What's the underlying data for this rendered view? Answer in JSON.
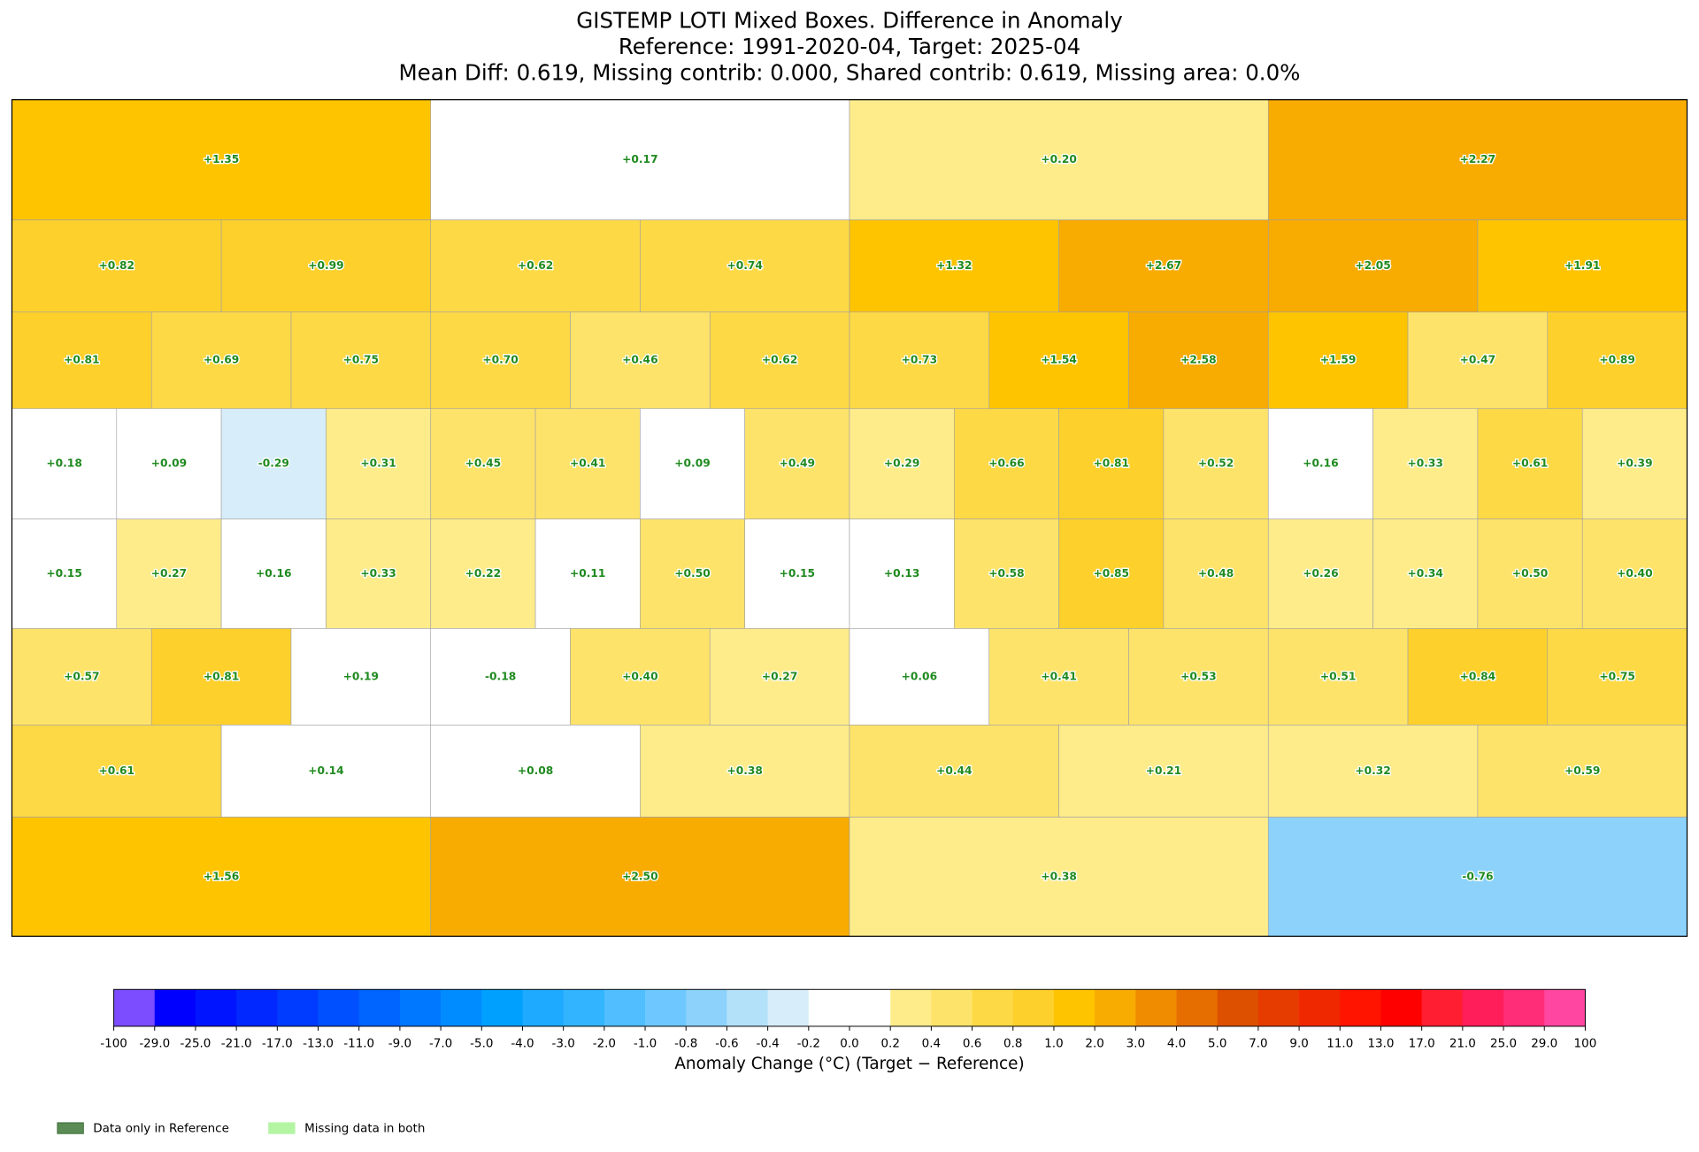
{
  "title_lines": [
    "GISTEMP LOTI Mixed Boxes. Difference in Anomaly",
    "Reference: 1991-2020-04, Target: 2025-04",
    "Mean Diff: 0.619, Missing contrib: 0.000, Shared contrib: 0.619, Missing area: 0.0%"
  ],
  "map": {
    "rows": [
      [
        "+1.35",
        "+0.17",
        "+0.20",
        "+2.27"
      ],
      [
        "+0.82",
        "+0.99",
        "+0.62",
        "+0.74",
        "+1.32",
        "+2.67",
        "+2.05",
        "+1.91"
      ],
      [
        "+0.81",
        "+0.69",
        "+0.75",
        "+0.70",
        "+0.46",
        "+0.62",
        "+0.73",
        "+1.54",
        "+2.58",
        "+1.59",
        "+0.47",
        "+0.89"
      ],
      [
        "+0.18",
        "+0.09",
        "-0.29",
        "+0.31",
        "+0.45",
        "+0.41",
        "+0.09",
        "+0.49",
        "+0.29",
        "+0.66",
        "+0.81",
        "+0.52",
        "+0.16",
        "+0.33",
        "+0.61",
        "+0.39"
      ],
      [
        "+0.15",
        "+0.27",
        "+0.16",
        "+0.33",
        "+0.22",
        "+0.11",
        "+0.50",
        "+0.15",
        "+0.13",
        "+0.58",
        "+0.85",
        "+0.48",
        "+0.26",
        "+0.34",
        "+0.50",
        "+0.40"
      ],
      [
        "+0.57",
        "+0.81",
        "+0.19",
        "-0.18",
        "+0.40",
        "+0.27",
        "+0.06",
        "+0.41",
        "+0.53",
        "+0.51",
        "+0.84",
        "+0.75"
      ],
      [
        "+0.61",
        "+0.14",
        "+0.08",
        "+0.38",
        "+0.44",
        "+0.21",
        "+0.32",
        "+0.59"
      ],
      [
        "+1.56",
        "+2.50",
        "+0.38",
        "-0.76"
      ]
    ]
  },
  "colorbar": {
    "label": "Anomaly Change (°C) (Target − Reference)",
    "levels": [
      -100,
      {
        "value": -29,
        "label": "-29.0"
      },
      {
        "value": -25,
        "label": "-25.0"
      },
      {
        "value": -21,
        "label": "-21.0"
      },
      {
        "value": -17,
        "label": "-17.0"
      },
      {
        "value": -13,
        "label": "-13.0"
      },
      {
        "value": -11,
        "label": "-11.0"
      },
      {
        "value": -9,
        "label": "-9.0"
      },
      {
        "value": -7,
        "label": "-7.0"
      },
      {
        "value": -5,
        "label": "-5.0"
      },
      {
        "value": -4,
        "label": "-4.0"
      },
      {
        "value": -3,
        "label": "-3.0"
      },
      {
        "value": -2,
        "label": "-2.0"
      },
      {
        "value": -1,
        "label": "-1.0"
      },
      -0.8,
      -0.6,
      -0.4,
      -0.2,
      {
        "value": 0,
        "label": "0.0"
      },
      0.2,
      0.4,
      0.6,
      0.8,
      {
        "value": 1,
        "label": "1.0"
      },
      {
        "value": 2,
        "label": "2.0"
      },
      {
        "value": 3,
        "label": "3.0"
      },
      {
        "value": 4,
        "label": "4.0"
      },
      {
        "value": 5,
        "label": "5.0"
      },
      {
        "value": 7,
        "label": "7.0"
      },
      {
        "value": 9,
        "label": "9.0"
      },
      {
        "value": 11,
        "label": "11.0"
      },
      {
        "value": 13,
        "label": "13.0"
      },
      {
        "value": 17,
        "label": "17.0"
      },
      {
        "value": 21,
        "label": "21.0"
      },
      {
        "value": 25,
        "label": "25.0"
      },
      {
        "value": 29,
        "label": "29.0"
      },
      100
    ],
    "colors": [
      "#7b4dff",
      "#0000ff",
      "#0014ff",
      "#0028ff",
      "#003cff",
      "#0050ff",
      "#0064ff",
      "#0078ff",
      "#008cff",
      "#00a0ff",
      "#1eaaff",
      "#32b4ff",
      "#50beff",
      "#6ec8ff",
      "#8cd2fa",
      "#b4e1fa",
      "#d7eefa",
      "#ffffff",
      "#ffffff",
      "#feec8b",
      "#fee36a",
      "#fdd946",
      "#fdd02c",
      "#fec400",
      "#f8ab00",
      "#f08c00",
      "#e66e00",
      "#dc5000",
      "#e63c00",
      "#f02800",
      "#ff1400",
      "#ff0000",
      "#ff1e32",
      "#ff1e5a",
      "#ff2d78",
      "#ff46a0"
    ]
  },
  "legend": [
    {
      "label": "Data only in Reference",
      "color": "#5b8c55"
    },
    {
      "label": "Missing data in both",
      "color": "#b3f5a3"
    }
  ]
}
